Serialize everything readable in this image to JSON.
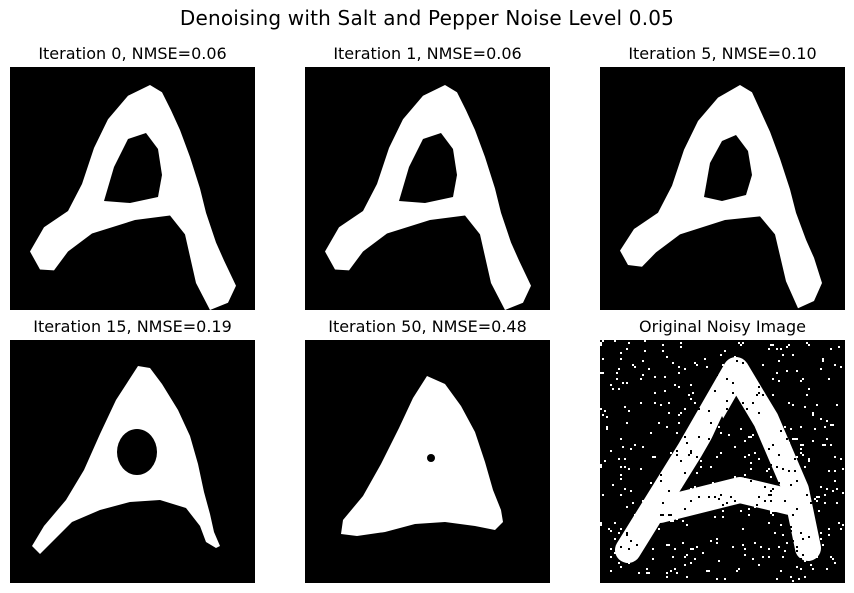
{
  "figure": {
    "title": "Denoising with Salt and Pepper Noise Level 0.05"
  },
  "panels": [
    {
      "title": "Iteration 0, NMSE=0.06",
      "iteration": 0,
      "nmse": 0.06
    },
    {
      "title": "Iteration 1, NMSE=0.06",
      "iteration": 1,
      "nmse": 0.06
    },
    {
      "title": "Iteration 5, NMSE=0.10",
      "iteration": 5,
      "nmse": 0.1
    },
    {
      "title": "Iteration 15, NMSE=0.19",
      "iteration": 15,
      "nmse": 0.19
    },
    {
      "title": "Iteration 50, NMSE=0.48",
      "iteration": 50,
      "nmse": 0.48
    },
    {
      "title": "Original Noisy Image",
      "iteration": null,
      "nmse": null
    }
  ],
  "colors": {
    "background": "#000000",
    "foreground": "#ffffff",
    "page": "#ffffff"
  }
}
